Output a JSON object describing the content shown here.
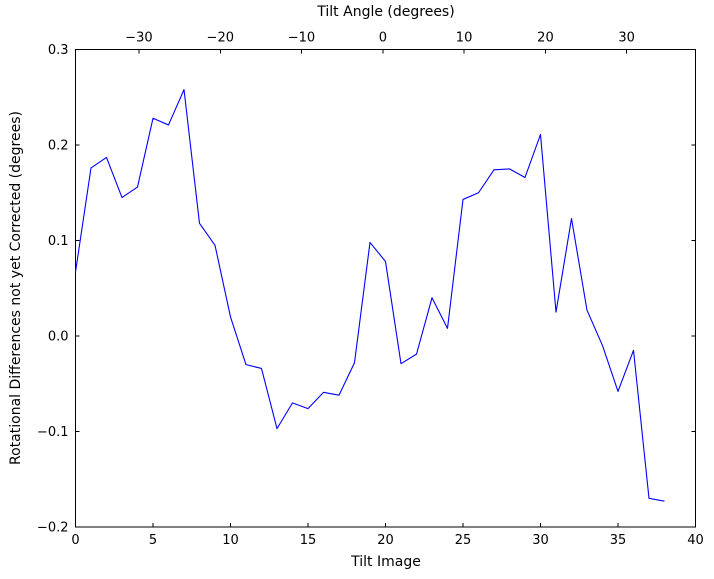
{
  "chart_data": {
    "type": "line",
    "top_axis": {
      "label": "Tilt Angle (degrees)",
      "tick_labels": [
        "−30",
        "−20",
        "−10",
        "0",
        "10",
        "20",
        "30"
      ],
      "tick_positions_x_units": [
        4.09,
        9.34,
        14.58,
        19.83,
        25.07,
        30.32,
        35.56
      ]
    },
    "xlabel": "Tilt Image",
    "ylabel": "Rotational Differences not yet Corrected (degrees)",
    "xlim": [
      0,
      40
    ],
    "ylim": [
      -0.2,
      0.3
    ],
    "grid": false,
    "legend": "none",
    "background_color": "#ffffff",
    "axis_color": "#000000",
    "line_color": "#0000ff",
    "x_ticks": {
      "values": [
        0,
        5,
        10,
        15,
        20,
        25,
        30,
        35,
        40
      ],
      "labels": [
        "0",
        "5",
        "10",
        "15",
        "20",
        "25",
        "30",
        "35",
        "40"
      ]
    },
    "y_ticks": {
      "values": [
        0.3,
        0.2,
        0.1,
        0.0,
        -0.1,
        -0.2
      ],
      "labels": [
        "0.3",
        "0.2",
        "0.1",
        "0.0",
        "−0.1",
        "−0.2"
      ]
    },
    "series": [
      {
        "name": "rotational-difference",
        "x": [
          0,
          1,
          2,
          3,
          4,
          5,
          6,
          7,
          8,
          9,
          10,
          11,
          12,
          13,
          14,
          15,
          16,
          17,
          18,
          19,
          20,
          21,
          22,
          23,
          24,
          25,
          26,
          27,
          28,
          29,
          30,
          31,
          32,
          33,
          34,
          35,
          36,
          37,
          38
        ],
        "y": [
          0.067,
          0.176,
          0.187,
          0.145,
          0.156,
          0.228,
          0.221,
          0.258,
          0.118,
          0.095,
          0.02,
          -0.03,
          -0.034,
          -0.097,
          -0.07,
          -0.076,
          -0.059,
          -0.062,
          -0.028,
          0.098,
          0.078,
          -0.029,
          -0.019,
          0.04,
          0.008,
          0.143,
          0.15,
          0.174,
          0.175,
          0.166,
          0.211,
          0.025,
          0.123,
          0.027,
          -0.01,
          -0.058,
          -0.015,
          -0.17,
          -0.173
        ]
      }
    ]
  }
}
